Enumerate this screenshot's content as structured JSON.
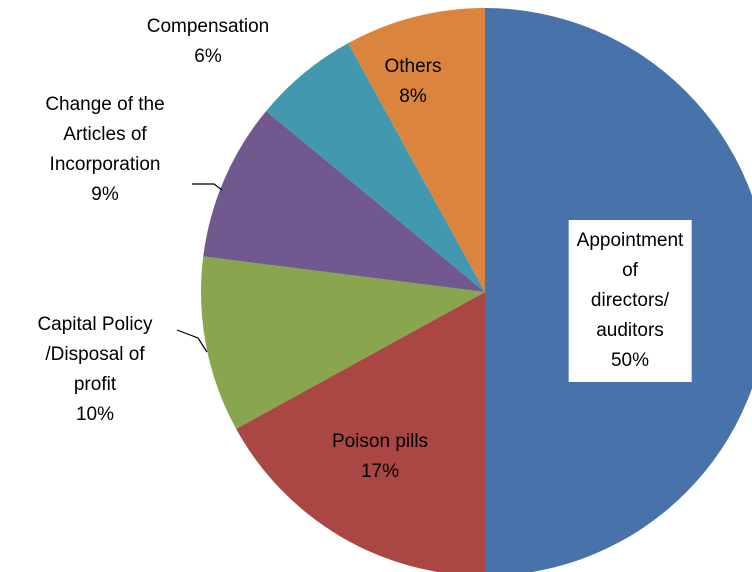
{
  "chart_data": {
    "type": "pie",
    "categories": [
      "Appointment of\ndirectors/\nauditors",
      "Poison pills",
      "Capital Policy\n/Disposal of\nprofit",
      "Change of the\nArticles  of\nIncorporation",
      "Compensation",
      "Others"
    ],
    "values": [
      50,
      17,
      10,
      9,
      6,
      8
    ],
    "value_labels": [
      "50%",
      "17%",
      "10%",
      "9%",
      "6%",
      "8%"
    ],
    "colors": [
      "#4773aa",
      "#aa4644",
      "#89a54e",
      "#71588f",
      "#4298af",
      "#db843d"
    ]
  }
}
